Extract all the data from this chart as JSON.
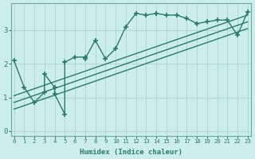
{
  "title": "",
  "xlabel": "Humidex (Indice chaleur)",
  "ylabel": "",
  "bg_color": "#cceee8",
  "line_color": "#2a7a6a",
  "grid_color": "#aad4cc",
  "scatter_x": [
    0,
    1,
    2,
    3,
    3,
    4,
    4,
    5,
    5,
    6,
    7,
    7,
    8,
    9,
    10,
    11,
    12,
    13,
    14,
    14,
    15,
    16,
    17,
    18,
    19,
    20,
    21,
    22,
    23
  ],
  "scatter_y": [
    2.1,
    1.3,
    0.85,
    1.15,
    1.7,
    1.3,
    1.1,
    0.5,
    2.05,
    2.2,
    2.2,
    2.15,
    2.7,
    2.15,
    2.45,
    3.1,
    3.5,
    3.45,
    3.5,
    3.5,
    3.45,
    3.45,
    3.35,
    3.2,
    3.25,
    3.3,
    3.3,
    2.85,
    3.55
  ],
  "line1_x": [
    0,
    23
  ],
  "line1_y": [
    0.85,
    3.25
  ],
  "line2_x": [
    0,
    23
  ],
  "line2_y": [
    1.05,
    3.45
  ],
  "line3_x": [
    0,
    23
  ],
  "line3_y": [
    0.65,
    3.05
  ],
  "xlim": [
    -0.3,
    23.3
  ],
  "ylim": [
    -0.15,
    3.8
  ],
  "xticks": [
    0,
    1,
    2,
    3,
    4,
    5,
    6,
    7,
    8,
    9,
    10,
    11,
    12,
    13,
    14,
    15,
    16,
    17,
    18,
    19,
    20,
    21,
    22,
    23
  ],
  "yticks": [
    0,
    1,
    2,
    3
  ],
  "marker_size": 4.0,
  "linewidth": 1.0
}
